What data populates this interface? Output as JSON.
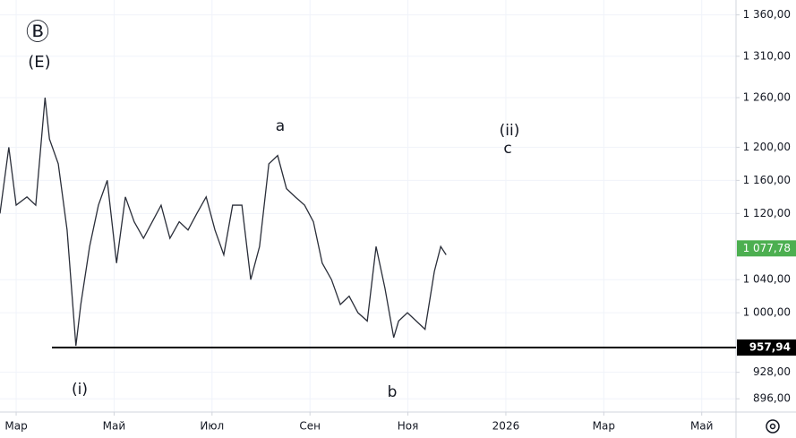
{
  "chart_data": {
    "type": "line",
    "x": [
      -0.33,
      -0.15,
      0,
      0.22,
      0.4,
      0.59,
      0.68,
      0.86,
      1.04,
      1.22,
      1.32,
      1.5,
      1.68,
      1.86,
      2.05,
      2.23,
      2.41,
      2.6,
      2.78,
      2.96,
      3.14,
      3.33,
      3.51,
      3.69,
      3.88,
      4.06,
      4.24,
      4.42,
      4.61,
      4.79,
      4.97,
      5.16,
      5.34,
      5.52,
      5.7,
      5.89,
      6.07,
      6.25,
      6.44,
      6.62,
      6.8,
      6.98,
      7.17,
      7.35,
      7.53,
      7.71,
      7.81,
      7.99,
      8.17,
      8.35,
      8.54,
      8.67,
      8.78
    ],
    "series": [
      {
        "color": "#2a2e39",
        "values": [
          1120,
          1200,
          1130,
          1140,
          1130,
          1260,
          1210,
          1180,
          1100,
          960,
          1010,
          1080,
          1130,
          1160,
          1060,
          1140,
          1110,
          1090,
          1110,
          1130,
          1090,
          1110,
          1100,
          1120,
          1140,
          1100,
          1070,
          1130,
          1130,
          1040,
          1080,
          1180,
          1190,
          1150,
          1140,
          1130,
          1110,
          1060,
          1040,
          1010,
          1020,
          1000,
          990,
          1080,
          1030,
          970,
          990,
          1000,
          990,
          980,
          1050,
          1080,
          1070
        ]
      }
    ],
    "xlim": [
      -0.33,
      14.7
    ],
    "xticks": [
      {
        "value": 0,
        "label": "Мар"
      },
      {
        "value": 2,
        "label": "Май"
      },
      {
        "value": 4,
        "label": "Июл"
      },
      {
        "value": 6,
        "label": "Сен"
      },
      {
        "value": 8,
        "label": "Ноя"
      },
      {
        "value": 10,
        "label": "2026"
      },
      {
        "value": 12,
        "label": "Мар"
      },
      {
        "value": 14,
        "label": "Май"
      }
    ],
    "ylim": [
      880,
      1378
    ],
    "yticks": [
      {
        "value": 1360,
        "label": "1 360,00"
      },
      {
        "value": 1310,
        "label": "1 310,00"
      },
      {
        "value": 1260,
        "label": "1 260,00"
      },
      {
        "value": 1200,
        "label": "1 200,00"
      },
      {
        "value": 1160,
        "label": "1 160,00"
      },
      {
        "value": 1120,
        "label": "1 120,00"
      },
      {
        "value": 1040,
        "label": "1 040,00"
      },
      {
        "value": 1000,
        "label": "1 000,00"
      },
      {
        "value": 928,
        "label": "928,00"
      },
      {
        "value": 896,
        "label": "896,00"
      }
    ],
    "grid": true,
    "last_price": {
      "value": 1077.78,
      "label": "1 077,78",
      "color": "#4caf50"
    },
    "level": {
      "value": 957.94,
      "label": "957,94",
      "color": "#000000"
    },
    "annotations": [
      "Ⓑ",
      "(E)",
      "a",
      "(ii)",
      "c",
      "(i)",
      "b"
    ]
  }
}
